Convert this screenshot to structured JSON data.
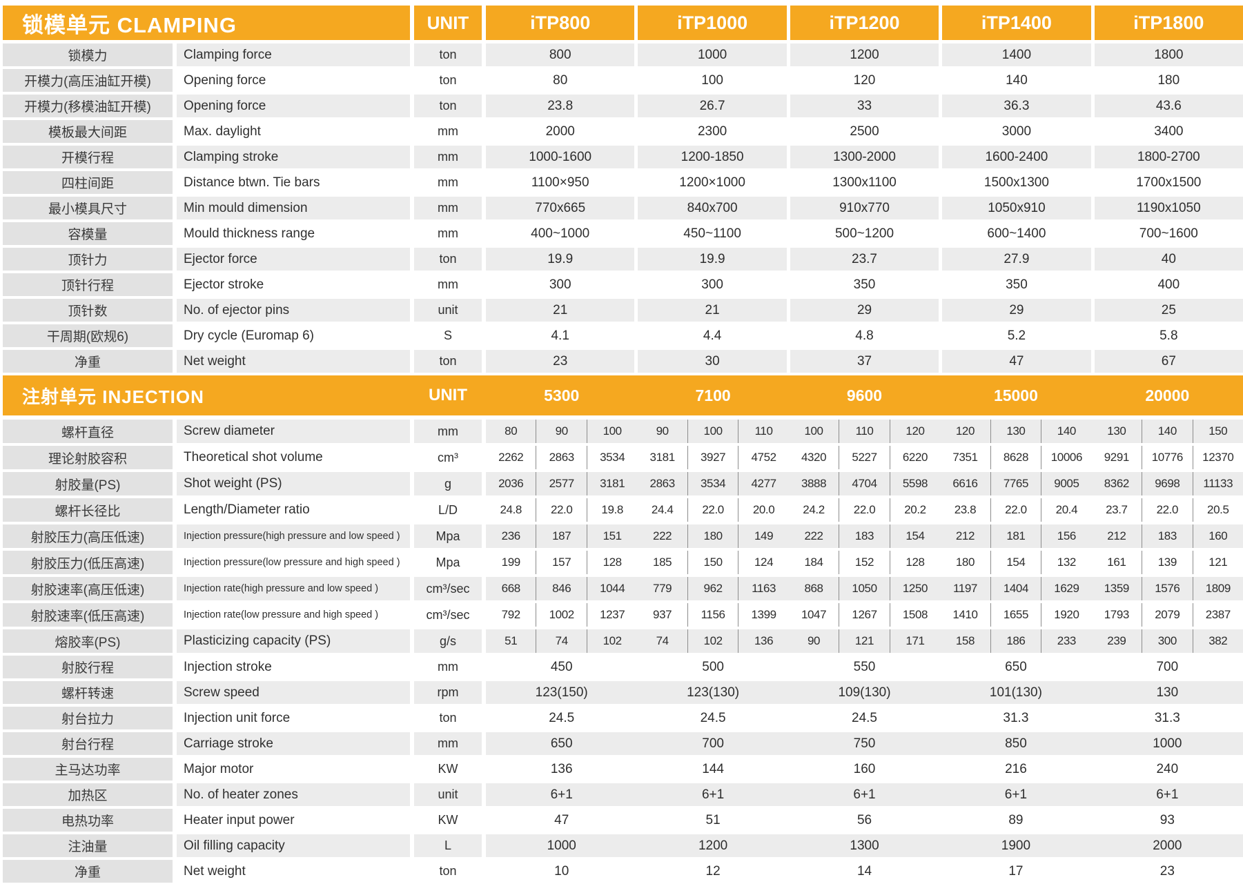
{
  "colors": {
    "accent": "#F5A820",
    "row_gray": "#ECECEC",
    "label_gray": "#E2E2E2",
    "divider": "#8C8C8C",
    "text": "#2E2E2E"
  },
  "clamping": {
    "title": "锁模单元 CLAMPING",
    "unit_header": "UNIT",
    "models": [
      "iTP800",
      "iTP1000",
      "iTP1200",
      "iTP1400",
      "iTP1800"
    ],
    "rows": [
      {
        "cn": "锁模力",
        "en": "Clamping force",
        "unit": "ton",
        "values": [
          "800",
          "1000",
          "1200",
          "1400",
          "1800"
        ]
      },
      {
        "cn": "开模力(高压油缸开模)",
        "en": "Opening force",
        "unit": "ton",
        "values": [
          "80",
          "100",
          "120",
          "140",
          "180"
        ]
      },
      {
        "cn": "开模力(移模油缸开模)",
        "en": "Opening force",
        "unit": "ton",
        "values": [
          "23.8",
          "26.7",
          "33",
          "36.3",
          "43.6"
        ]
      },
      {
        "cn": "模板最大间距",
        "en": "Max. daylight",
        "unit": "mm",
        "values": [
          "2000",
          "2300",
          "2500",
          "3000",
          "3400"
        ]
      },
      {
        "cn": "开模行程",
        "en": "Clamping stroke",
        "unit": "mm",
        "values": [
          "1000-1600",
          "1200-1850",
          "1300-2000",
          "1600-2400",
          "1800-2700"
        ]
      },
      {
        "cn": "四柱间距",
        "en": "Distance btwn. Tie bars",
        "unit": "mm",
        "values": [
          "1100×950",
          "1200×1000",
          "1300x1100",
          "1500x1300",
          "1700x1500"
        ]
      },
      {
        "cn": "最小模具尺寸",
        "en": "Min mould dimension",
        "unit": "mm",
        "values": [
          "770x665",
          "840x700",
          "910x770",
          "1050x910",
          "1190x1050"
        ]
      },
      {
        "cn": "容模量",
        "en": "Mould thickness range",
        "unit": "mm",
        "values": [
          "400~1000",
          "450~1100",
          "500~1200",
          "600~1400",
          "700~1600"
        ]
      },
      {
        "cn": "顶针力",
        "en": "Ejector force",
        "unit": "ton",
        "values": [
          "19.9",
          "19.9",
          "23.7",
          "27.9",
          "40"
        ]
      },
      {
        "cn": "顶针行程",
        "en": "Ejector stroke",
        "unit": "mm",
        "values": [
          "300",
          "300",
          "350",
          "350",
          "400"
        ]
      },
      {
        "cn": "顶针数",
        "en": "No. of ejector pins",
        "unit": "unit",
        "values": [
          "21",
          "21",
          "29",
          "29",
          "25"
        ]
      },
      {
        "cn": "干周期(欧规6)",
        "en": "Dry cycle (Euromap 6)",
        "unit": "S",
        "values": [
          "4.1",
          "4.4",
          "4.8",
          "5.2",
          "5.8"
        ]
      },
      {
        "cn": "净重",
        "en": "Net weight",
        "unit": "ton",
        "values": [
          "23",
          "30",
          "37",
          "47",
          "67"
        ]
      }
    ]
  },
  "injection": {
    "title": "注射单元 INJECTION",
    "unit_header": "UNIT",
    "models": [
      "5300",
      "7100",
      "9600",
      "15000",
      "20000"
    ],
    "rows_sub": [
      {
        "cn": "螺杆直径",
        "en": "Screw diameter",
        "unit": "mm",
        "values": [
          "80",
          "90",
          "100",
          "90",
          "100",
          "110",
          "100",
          "110",
          "120",
          "120",
          "130",
          "140",
          "130",
          "140",
          "150"
        ]
      },
      {
        "cn": "理论射胶容积",
        "en": "Theoretical shot volume",
        "unit": "cm³",
        "values": [
          "2262",
          "2863",
          "3534",
          "3181",
          "3927",
          "4752",
          "4320",
          "5227",
          "6220",
          "7351",
          "8628",
          "10006",
          "9291",
          "10776",
          "12370"
        ]
      },
      {
        "cn": "射胶量(PS)",
        "en": "Shot weight (PS)",
        "unit": "g",
        "values": [
          "2036",
          "2577",
          "3181",
          "2863",
          "3534",
          "4277",
          "3888",
          "4704",
          "5598",
          "6616",
          "7765",
          "9005",
          "8362",
          "9698",
          "11133"
        ]
      },
      {
        "cn": "螺杆长径比",
        "en": "Length/Diameter ratio",
        "unit": "L/D",
        "values": [
          "24.8",
          "22.0",
          "19.8",
          "24.4",
          "22.0",
          "20.0",
          "24.2",
          "22.0",
          "20.2",
          "23.8",
          "22.0",
          "20.4",
          "23.7",
          "22.0",
          "20.5"
        ]
      },
      {
        "cn": "射胶压力(高压低速)",
        "en": "Injection pressure(high pressure and low speed )",
        "unit": "Mpa",
        "values": [
          "236",
          "187",
          "151",
          "222",
          "180",
          "149",
          "222",
          "183",
          "154",
          "212",
          "181",
          "156",
          "212",
          "183",
          "160"
        ]
      },
      {
        "cn": "射胶压力(低压高速)",
        "en": "Injection pressure(low pressure and high speed )",
        "unit": "Mpa",
        "values": [
          "199",
          "157",
          "128",
          "185",
          "150",
          "124",
          "184",
          "152",
          "128",
          "180",
          "154",
          "132",
          "161",
          "139",
          "121"
        ]
      },
      {
        "cn": "射胶速率(高压低速)",
        "en": "Injection rate(high pressure and low speed )",
        "unit": "cm³/sec",
        "values": [
          "668",
          "846",
          "1044",
          "779",
          "962",
          "1163",
          "868",
          "1050",
          "1250",
          "1197",
          "1404",
          "1629",
          "1359",
          "1576",
          "1809"
        ]
      },
      {
        "cn": "射胶速率(低压高速)",
        "en": "Injection rate(low pressure and high speed )",
        "unit": "cm³/sec",
        "values": [
          "792",
          "1002",
          "1237",
          "937",
          "1156",
          "1399",
          "1047",
          "1267",
          "1508",
          "1410",
          "1655",
          "1920",
          "1793",
          "2079",
          "2387"
        ]
      },
      {
        "cn": "熔胶率(PS)",
        "en": "Plasticizing capacity (PS)",
        "unit": "g/s",
        "values": [
          "51",
          "74",
          "102",
          "74",
          "102",
          "136",
          "90",
          "121",
          "171",
          "158",
          "186",
          "233",
          "239",
          "300",
          "382"
        ]
      }
    ],
    "rows_merged": [
      {
        "cn": "射胶行程",
        "en": "Injection stroke",
        "unit": "mm",
        "values": [
          "450",
          "500",
          "550",
          "650",
          "700"
        ]
      },
      {
        "cn": "螺杆转速",
        "en": "Screw speed",
        "unit": "rpm",
        "values": [
          "123(150)",
          "123(130)",
          "109(130)",
          "101(130)",
          "130"
        ]
      },
      {
        "cn": "射台拉力",
        "en": "Injection unit force",
        "unit": "ton",
        "values": [
          "24.5",
          "24.5",
          "24.5",
          "31.3",
          "31.3"
        ]
      },
      {
        "cn": "射台行程",
        "en": "Carriage stroke",
        "unit": "mm",
        "values": [
          "650",
          "700",
          "750",
          "850",
          "1000"
        ]
      },
      {
        "cn": "主马达功率",
        "en": "Major motor",
        "unit": "KW",
        "values": [
          "136",
          "144",
          "160",
          "216",
          "240"
        ]
      },
      {
        "cn": "加热区",
        "en": "No. of heater zones",
        "unit": "unit",
        "values": [
          "6+1",
          "6+1",
          "6+1",
          "6+1",
          "6+1"
        ]
      },
      {
        "cn": "电热功率",
        "en": "Heater input power",
        "unit": "KW",
        "values": [
          "47",
          "51",
          "56",
          "89",
          "93"
        ]
      },
      {
        "cn": "注油量",
        "en": "Oil filling capacity",
        "unit": "L",
        "values": [
          "1000",
          "1200",
          "1300",
          "1900",
          "2000"
        ]
      },
      {
        "cn": "净重",
        "en": "Net weight",
        "unit": "ton",
        "values": [
          "10",
          "12",
          "14",
          "17",
          "23"
        ]
      }
    ]
  }
}
